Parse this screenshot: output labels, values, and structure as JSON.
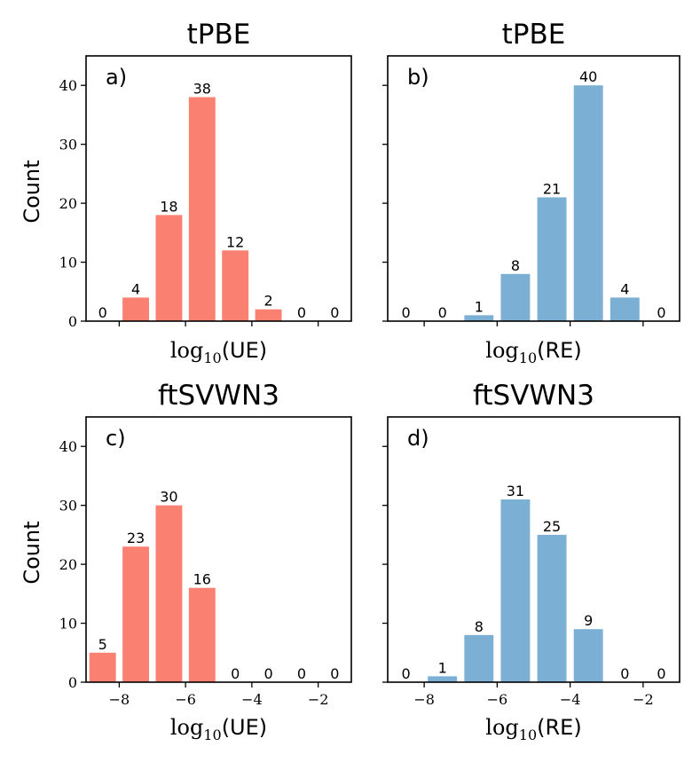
{
  "figure": {
    "ylabel": "Count"
  },
  "chart_data": [
    {
      "id": "a",
      "type": "bar",
      "panel_label": "a)",
      "title": "tPBE",
      "xlabel": {
        "prefix": "log",
        "sub": "10",
        "var": "(UE)"
      },
      "x": [
        -8.5,
        -7.5,
        -6.5,
        -5.5,
        -4.5,
        -3.5,
        -2.5,
        -1.5
      ],
      "values": [
        0,
        4,
        18,
        38,
        12,
        2,
        0,
        0
      ],
      "color": "#fa8072",
      "xlim": [
        -9,
        -1
      ],
      "ylim": [
        0,
        45
      ],
      "xticks": [
        -8,
        -6,
        -4,
        -2
      ],
      "xtick_labels_visible": false,
      "yticks": [
        0,
        10,
        20,
        30,
        40
      ],
      "ytick_labels_visible": true
    },
    {
      "id": "b",
      "type": "bar",
      "panel_label": "b)",
      "title": "tPBE",
      "xlabel": {
        "prefix": "log",
        "sub": "10",
        "var": "(RE)"
      },
      "x": [
        -8.5,
        -7.5,
        -6.5,
        -5.5,
        -4.5,
        -3.5,
        -2.5,
        -1.5
      ],
      "values": [
        0,
        0,
        1,
        8,
        21,
        40,
        4,
        0
      ],
      "color": "#7bafd4",
      "xlim": [
        -9,
        -1
      ],
      "ylim": [
        0,
        45
      ],
      "xticks": [
        -8,
        -6,
        -4,
        -2
      ],
      "xtick_labels_visible": false,
      "yticks": [
        0,
        10,
        20,
        30,
        40
      ],
      "ytick_labels_visible": false
    },
    {
      "id": "c",
      "type": "bar",
      "panel_label": "c)",
      "title": "ftSVWN3",
      "xlabel": {
        "prefix": "log",
        "sub": "10",
        "var": "(UE)"
      },
      "x": [
        -8.5,
        -7.5,
        -6.5,
        -5.5,
        -4.5,
        -3.5,
        -2.5,
        -1.5
      ],
      "values": [
        5,
        23,
        30,
        16,
        0,
        0,
        0,
        0
      ],
      "color": "#fa8072",
      "xlim": [
        -9,
        -1
      ],
      "ylim": [
        0,
        45
      ],
      "xticks": [
        -8,
        -6,
        -4,
        -2
      ],
      "xtick_labels_visible": true,
      "yticks": [
        0,
        10,
        20,
        30,
        40
      ],
      "ytick_labels_visible": true
    },
    {
      "id": "d",
      "type": "bar",
      "panel_label": "d)",
      "title": "ftSVWN3",
      "xlabel": {
        "prefix": "log",
        "sub": "10",
        "var": "(RE)"
      },
      "x": [
        -8.5,
        -7.5,
        -6.5,
        -5.5,
        -4.5,
        -3.5,
        -2.5,
        -1.5
      ],
      "values": [
        0,
        1,
        8,
        31,
        25,
        9,
        0,
        0
      ],
      "color": "#7bafd4",
      "xlim": [
        -9,
        -1
      ],
      "ylim": [
        0,
        45
      ],
      "xticks": [
        -8,
        -6,
        -4,
        -2
      ],
      "xtick_labels_visible": true,
      "yticks": [
        0,
        10,
        20,
        30,
        40
      ],
      "ytick_labels_visible": false
    }
  ]
}
